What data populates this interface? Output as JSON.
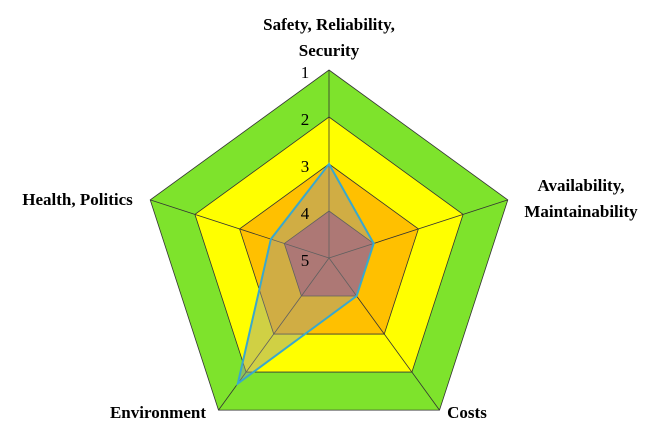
{
  "chart_data": {
    "type": "radar",
    "categories": [
      "Safety, Reliability, Security",
      "Availability, Maintainability",
      "Costs",
      "Environment",
      "Health, Politics"
    ],
    "series": [
      {
        "color": "#3aa8cc",
        "values": [
          3,
          4,
          4,
          1.7,
          3.7
        ]
      }
    ],
    "rlim": [
      5,
      1
    ],
    "rticks": [
      1,
      2,
      3,
      4,
      5
    ],
    "band_colors": [
      "#7ee32c",
      "#ffff00",
      "#ffc000",
      "#c0605a"
    ],
    "grid": true
  }
}
